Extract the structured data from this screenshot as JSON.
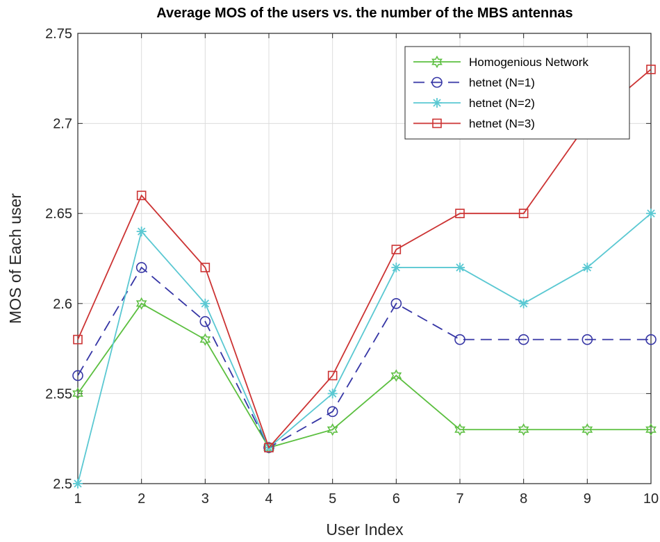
{
  "chart_data": {
    "type": "line",
    "title": "Average MOS of the users vs. the number of the MBS antennas",
    "xlabel": "User Index",
    "ylabel": "MOS of Each user",
    "x": [
      1,
      2,
      3,
      4,
      5,
      6,
      7,
      8,
      9,
      10
    ],
    "xlim": [
      1,
      10
    ],
    "ylim": [
      2.5,
      2.75
    ],
    "xticks": [
      "1",
      "2",
      "3",
      "4",
      "5",
      "6",
      "7",
      "8",
      "9",
      "10"
    ],
    "yticks": [
      "2.5",
      "2.55",
      "2.6",
      "2.65",
      "2.7",
      "2.75"
    ],
    "grid": true,
    "legend_position": "top-right",
    "series": [
      {
        "name": "Homogenious Network",
        "color": "#5bbf3f",
        "line": "solid",
        "marker": "hexagram",
        "values": [
          2.55,
          2.6,
          2.58,
          2.52,
          2.53,
          2.56,
          2.53,
          2.53,
          2.53,
          2.53
        ]
      },
      {
        "name": "hetnet (N=1)",
        "color": "#3535a5",
        "line": "dashed",
        "marker": "circle",
        "values": [
          2.56,
          2.62,
          2.59,
          2.52,
          2.54,
          2.6,
          2.58,
          2.58,
          2.58,
          2.58
        ]
      },
      {
        "name": "hetnet (N=2)",
        "color": "#5ac8d2",
        "line": "solid",
        "marker": "asterisk",
        "values": [
          2.5,
          2.64,
          2.6,
          2.52,
          2.55,
          2.62,
          2.62,
          2.6,
          2.62,
          2.65
        ]
      },
      {
        "name": "hetnet (N=3)",
        "color": "#cc3333",
        "line": "solid",
        "marker": "square",
        "values": [
          2.58,
          2.66,
          2.62,
          2.52,
          2.56,
          2.63,
          2.65,
          2.65,
          2.7,
          2.73
        ]
      }
    ]
  }
}
